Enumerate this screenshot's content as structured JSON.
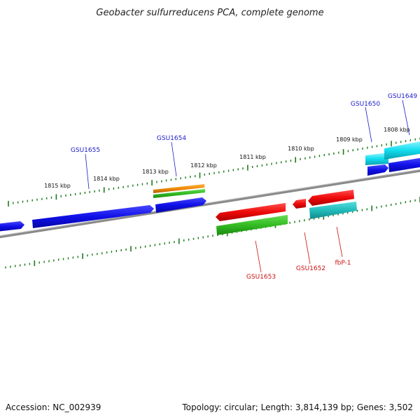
{
  "title": "Geobacter sulfurreducens PCA, complete genome",
  "footer": {
    "accession": "Accession: NC_002939",
    "summary": "Topology: circular; Length: 3,814,139 bp; Genes: 3,502"
  },
  "kbp_labels": [
    "1815 kbp",
    "1814 kbp",
    "1813 kbp",
    "1812 kbp",
    "1811 kbp",
    "1810 kbp",
    "1809 kbp",
    "1808 kbp"
  ],
  "gene_labels": {
    "forward": [
      "GSU1655",
      "GSU1654",
      "GSU1650",
      "GSU1649"
    ],
    "reverse": [
      "GSU1653",
      "GSU1652",
      "fbP-1"
    ]
  },
  "colors": {
    "forward_label": "#1a1acc",
    "reverse_label": "#cc1111",
    "tick": "#1e7a1e",
    "backbone": "#8a8a8a",
    "blue": "#1010e8",
    "red": "#ee0a0a",
    "green": "#33bb22",
    "orange": "#ee8a0a",
    "cyan": "#11ddee",
    "teal": "#22bbbb"
  }
}
